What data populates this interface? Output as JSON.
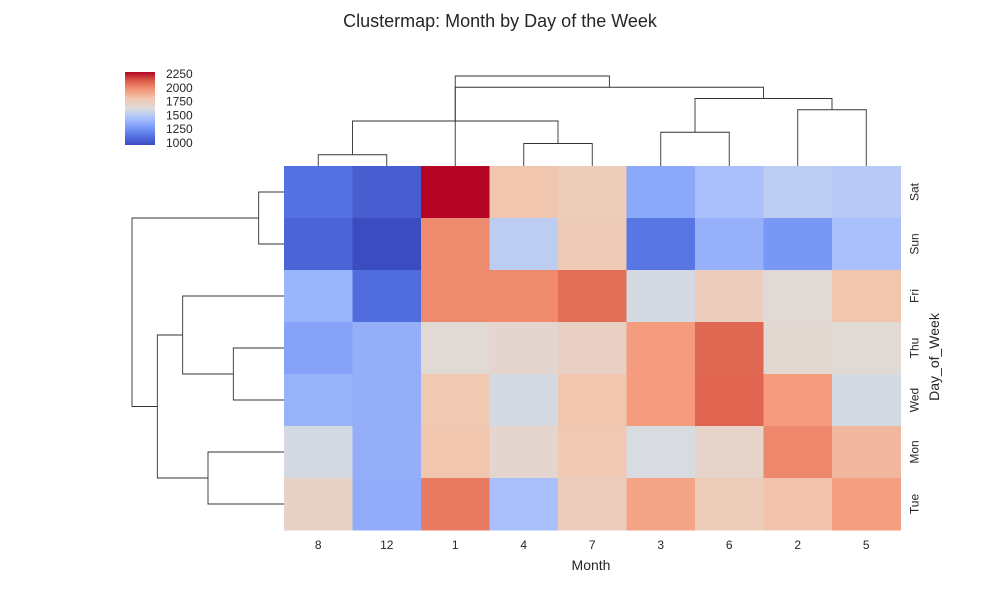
{
  "chart_data": {
    "type": "heatmap",
    "title": "Clustermap: Month by Day of the Week",
    "xlabel": "Month",
    "ylabel": "Day_of_Week",
    "columns": [
      "8",
      "12",
      "1",
      "4",
      "7",
      "3",
      "6",
      "2",
      "5"
    ],
    "rows": [
      "Sat",
      "Sun",
      "Fri",
      "Thu",
      "Wed",
      "Mon",
      "Tue"
    ],
    "values": [
      [
        1120,
        1040,
        2290,
        1800,
        1760,
        1340,
        1450,
        1520,
        1500
      ],
      [
        1070,
        960,
        2000,
        1520,
        1770,
        1140,
        1380,
        1270,
        1450
      ],
      [
        1400,
        1100,
        2000,
        2000,
        2080,
        1600,
        1750,
        1650,
        1800
      ],
      [
        1320,
        1370,
        1660,
        1680,
        1720,
        1950,
        2100,
        1670,
        1660
      ],
      [
        1390,
        1370,
        1790,
        1600,
        1800,
        1950,
        2110,
        1950,
        1600
      ],
      [
        1600,
        1370,
        1800,
        1680,
        1780,
        1610,
        1700,
        2010,
        1850
      ],
      [
        1710,
        1360,
        2050,
        1450,
        1750,
        1920,
        1760,
        1810,
        1940
      ]
    ],
    "colorbar": {
      "ticks": [
        1000,
        1250,
        1500,
        1750,
        2000,
        2250
      ],
      "range": [
        960,
        2290
      ],
      "colormap": "coolwarm"
    },
    "column_dendrogram": [
      [
        0,
        1
      ],
      [
        3,
        4
      ],
      [
        5,
        6
      ],
      [
        9,
        10
      ],
      [
        7,
        8
      ],
      [
        11,
        13
      ],
      [
        2,
        14
      ],
      [
        12,
        15
      ]
    ],
    "row_dendrogram": [
      [
        0,
        1
      ],
      [
        3,
        4
      ],
      [
        5,
        6
      ],
      [
        2,
        8
      ],
      [
        9,
        10
      ],
      [
        7,
        11
      ]
    ],
    "colors": {
      "dendrogram": "#333333",
      "cold": "#3b4cc0",
      "neutral": "#dddddd",
      "hot": "#b40426"
    }
  }
}
